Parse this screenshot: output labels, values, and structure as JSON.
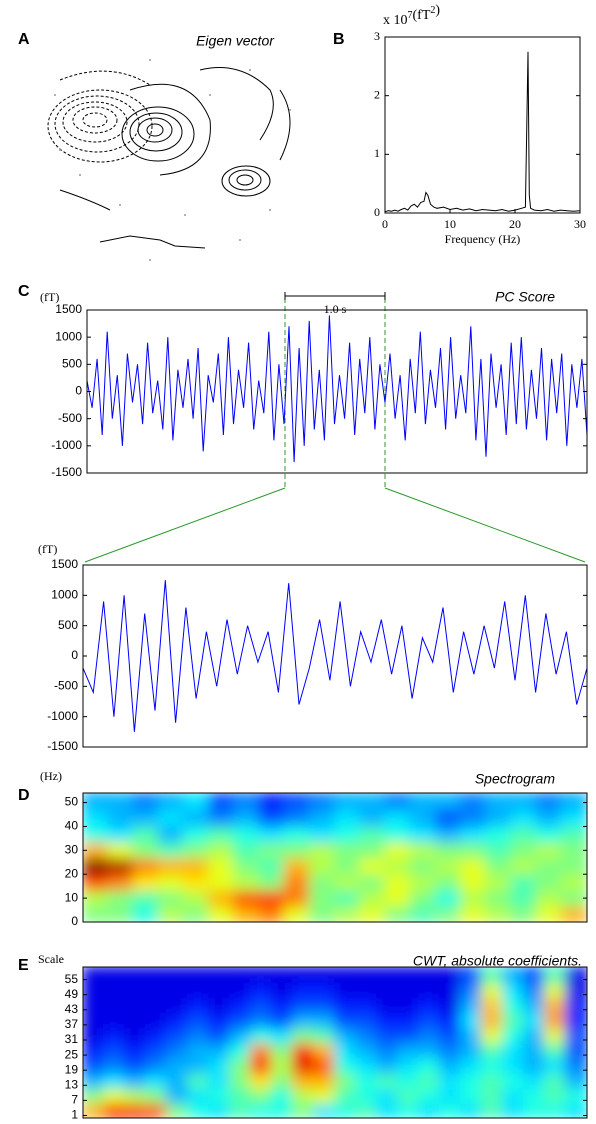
{
  "panel_a": {
    "label": "A",
    "title": "Eigen vector"
  },
  "chart_data": [
    {
      "panel": "B",
      "type": "line",
      "y_multiplier": {
        "prefix": "x 10",
        "exponent": "7",
        "unit": "(fT",
        "unit_exponent": "2",
        "suffix": ")"
      },
      "xlabel": "Frequency (Hz)",
      "x": [
        0,
        0.5,
        1,
        1.5,
        2,
        2.5,
        3,
        3.5,
        4,
        4.5,
        5,
        5.5,
        6,
        6.3,
        6.6,
        7,
        7.5,
        8,
        9,
        10,
        11,
        12,
        13,
        14,
        15,
        16,
        17,
        18,
        19,
        20,
        21,
        21.6,
        21.8,
        22,
        22.2,
        22.4,
        23,
        24,
        25,
        26,
        27,
        28,
        29,
        30
      ],
      "values": [
        0.02,
        0.04,
        0.03,
        0.05,
        0.03,
        0.06,
        0.08,
        0.05,
        0.12,
        0.15,
        0.1,
        0.18,
        0.2,
        0.35,
        0.3,
        0.15,
        0.1,
        0.08,
        0.1,
        0.06,
        0.08,
        0.05,
        0.07,
        0.04,
        0.06,
        0.05,
        0.04,
        0.06,
        0.03,
        0.05,
        0.08,
        0.1,
        1.4,
        2.75,
        0.3,
        0.08,
        0.05,
        0.04,
        0.06,
        0.03,
        0.05,
        0.04,
        0.03,
        0.04
      ],
      "color": "#000000",
      "xlim": [
        0,
        30
      ],
      "ylim": [
        0,
        3
      ],
      "xticks": [
        0,
        10,
        20,
        30
      ],
      "yticks": [
        0,
        1,
        2,
        3
      ]
    },
    {
      "panel": "C",
      "type": "line",
      "title": "PC Score",
      "ylabel": "(fT)",
      "annotation": "1.0 s",
      "values": [
        200,
        -300,
        600,
        -800,
        1100,
        -500,
        300,
        -1000,
        700,
        -200,
        500,
        -600,
        900,
        -400,
        200,
        -700,
        1000,
        -900,
        400,
        -300,
        600,
        -500,
        800,
        -1100,
        300,
        -200,
        700,
        -800,
        1000,
        -600,
        400,
        -300,
        900,
        -700,
        200,
        -400,
        1100,
        -900,
        500,
        -600,
        1200,
        -1300,
        800,
        -1000,
        1300,
        -700,
        400,
        -900,
        1400,
        -600,
        300,
        -500,
        900,
        -800,
        600,
        -400,
        1000,
        -700,
        500,
        -200,
        700,
        -500,
        300,
        -900,
        600,
        -400,
        1100,
        -600,
        400,
        -300,
        800,
        -700,
        1000,
        -500,
        300,
        -400,
        1200,
        -900,
        600,
        -1200,
        700,
        -300,
        500,
        -800,
        900,
        -600,
        1000,
        -700,
        400,
        -500,
        800,
        -900,
        600,
        -400,
        700,
        -1000,
        500,
        -300,
        600,
        -800
      ],
      "color": "#0000ff",
      "ylim": [
        -1500,
        1500
      ],
      "yticks": [
        -1500,
        -1000,
        -500,
        0,
        500,
        1000,
        1500
      ]
    },
    {
      "type": "line",
      "ylabel": "(fT)",
      "values": [
        -200,
        -600,
        900,
        -1000,
        1000,
        -1250,
        700,
        -900,
        1250,
        -1100,
        800,
        -700,
        400,
        -500,
        600,
        -300,
        500,
        -100,
        400,
        -600,
        1200,
        -800,
        -200,
        600,
        -400,
        900,
        -500,
        400,
        -100,
        600,
        -300,
        500,
        -700,
        300,
        -100,
        800,
        -600,
        400,
        -300,
        500,
        -200,
        900,
        -400,
        1000,
        -600,
        700,
        -300,
        400,
        -800,
        -200
      ],
      "color": "#0000ff",
      "ylim": [
        -1500,
        1500
      ],
      "yticks": [
        -1500,
        -1000,
        -500,
        0,
        500,
        1000,
        1500
      ]
    },
    {
      "panel": "D",
      "type": "heatmap",
      "title": "Spectrogram",
      "ylabel": "(Hz)",
      "ylim": [
        0,
        54
      ],
      "yticks": [
        0,
        10,
        20,
        30,
        40,
        50
      ],
      "z": [
        [
          0.5,
          0.5,
          0.4,
          0.55,
          0.5,
          0.6,
          0.7,
          0.75,
          0.6,
          0.5,
          0.55,
          0.6,
          0.5,
          0.45,
          0.5,
          0.6,
          0.55,
          0.5,
          0.6,
          0.7
        ],
        [
          0.55,
          0.5,
          0.45,
          0.5,
          0.55,
          0.7,
          0.8,
          0.82,
          0.75,
          0.5,
          0.45,
          0.55,
          0.6,
          0.5,
          0.4,
          0.55,
          0.5,
          0.45,
          0.55,
          0.5
        ],
        [
          0.8,
          0.75,
          0.65,
          0.6,
          0.65,
          0.6,
          0.55,
          0.5,
          0.75,
          0.5,
          0.55,
          0.5,
          0.6,
          0.55,
          0.5,
          0.6,
          0.55,
          0.45,
          0.5,
          0.55
        ],
        [
          1.0,
          0.95,
          0.75,
          0.7,
          0.7,
          0.6,
          0.5,
          0.45,
          0.7,
          0.55,
          0.5,
          0.6,
          0.55,
          0.5,
          0.55,
          0.6,
          0.5,
          0.55,
          0.5,
          0.5
        ],
        [
          0.7,
          0.6,
          0.5,
          0.45,
          0.5,
          0.55,
          0.45,
          0.5,
          0.5,
          0.55,
          0.5,
          0.5,
          0.6,
          0.55,
          0.5,
          0.5,
          0.45,
          0.5,
          0.55,
          0.5
        ],
        [
          0.4,
          0.35,
          0.45,
          0.3,
          0.4,
          0.45,
          0.4,
          0.35,
          0.4,
          0.35,
          0.4,
          0.45,
          0.4,
          0.35,
          0.3,
          0.35,
          0.4,
          0.45,
          0.4,
          0.45
        ],
        [
          0.35,
          0.3,
          0.3,
          0.35,
          0.3,
          0.25,
          0.3,
          0.2,
          0.25,
          0.3,
          0.35,
          0.3,
          0.35,
          0.3,
          0.2,
          0.25,
          0.3,
          0.35,
          0.3,
          0.35
        ],
        [
          0.3,
          0.3,
          0.25,
          0.3,
          0.35,
          0.2,
          0.25,
          0.15,
          0.2,
          0.25,
          0.3,
          0.3,
          0.25,
          0.3,
          0.3,
          0.25,
          0.3,
          0.3,
          0.25,
          0.3
        ]
      ]
    },
    {
      "panel": "E",
      "type": "heatmap",
      "title": "CWT, absolute coefficients.",
      "ylabel": "Scale",
      "ylim": [
        0,
        60
      ],
      "yticks": [
        1,
        7,
        13,
        19,
        25,
        31,
        37,
        43,
        49,
        55
      ],
      "z": [
        [
          0.7,
          0.85,
          0.85,
          0.8,
          0.5,
          0.4,
          0.35,
          0.45,
          0.4,
          0.4,
          0.5,
          0.35,
          0.4,
          0.45,
          0.35,
          0.4,
          0.35,
          0.4,
          0.35,
          0.45,
          0.35,
          0.4,
          0.4,
          0.35
        ],
        [
          0.5,
          0.6,
          0.55,
          0.5,
          0.3,
          0.35,
          0.4,
          0.45,
          0.5,
          0.4,
          0.55,
          0.6,
          0.45,
          0.4,
          0.35,
          0.45,
          0.4,
          0.35,
          0.4,
          0.45,
          0.35,
          0.4,
          0.45,
          0.4
        ],
        [
          0.3,
          0.35,
          0.3,
          0.35,
          0.3,
          0.45,
          0.35,
          0.5,
          0.65,
          0.5,
          0.7,
          0.7,
          0.5,
          0.4,
          0.45,
          0.4,
          0.45,
          0.35,
          0.4,
          0.45,
          0.4,
          0.35,
          0.45,
          0.3
        ],
        [
          0.2,
          0.25,
          0.2,
          0.25,
          0.3,
          0.3,
          0.35,
          0.5,
          0.85,
          0.55,
          0.9,
          0.8,
          0.4,
          0.35,
          0.3,
          0.35,
          0.4,
          0.3,
          0.35,
          0.4,
          0.35,
          0.3,
          0.35,
          0.25
        ],
        [
          0.15,
          0.2,
          0.15,
          0.2,
          0.25,
          0.3,
          0.3,
          0.4,
          0.75,
          0.5,
          0.85,
          0.7,
          0.35,
          0.3,
          0.25,
          0.3,
          0.3,
          0.25,
          0.3,
          0.45,
          0.35,
          0.3,
          0.45,
          0.2
        ],
        [
          0.1,
          0.15,
          0.1,
          0.15,
          0.2,
          0.25,
          0.2,
          0.3,
          0.4,
          0.35,
          0.5,
          0.45,
          0.3,
          0.25,
          0.2,
          0.2,
          0.25,
          0.2,
          0.3,
          0.6,
          0.4,
          0.3,
          0.6,
          0.2
        ],
        [
          0.1,
          0.1,
          0.1,
          0.1,
          0.15,
          0.2,
          0.15,
          0.2,
          0.25,
          0.2,
          0.3,
          0.3,
          0.2,
          0.2,
          0.15,
          0.15,
          0.2,
          0.15,
          0.35,
          0.7,
          0.45,
          0.35,
          0.72,
          0.15
        ],
        [
          0.1,
          0.1,
          0.1,
          0.1,
          0.1,
          0.15,
          0.1,
          0.15,
          0.2,
          0.15,
          0.2,
          0.2,
          0.15,
          0.15,
          0.1,
          0.1,
          0.15,
          0.1,
          0.3,
          0.68,
          0.4,
          0.3,
          0.7,
          0.15
        ],
        [
          0.1,
          0.1,
          0.1,
          0.1,
          0.1,
          0.1,
          0.1,
          0.1,
          0.15,
          0.1,
          0.15,
          0.15,
          0.1,
          0.1,
          0.1,
          0.1,
          0.1,
          0.1,
          0.25,
          0.6,
          0.35,
          0.25,
          0.6,
          0.1
        ],
        [
          0.1,
          0.1,
          0.1,
          0.1,
          0.1,
          0.1,
          0.1,
          0.1,
          0.1,
          0.1,
          0.1,
          0.1,
          0.1,
          0.1,
          0.1,
          0.1,
          0.1,
          0.1,
          0.2,
          0.45,
          0.3,
          0.2,
          0.45,
          0.1
        ]
      ]
    }
  ]
}
